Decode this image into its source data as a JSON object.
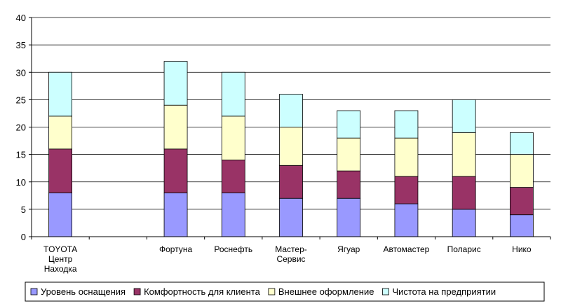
{
  "chart_data": {
    "type": "bar",
    "stacked": true,
    "categories": [
      "TOYOTA\nЦентр\nНаходка",
      "",
      "Фортуна",
      "Роснефть",
      "Мастер-\nСервис",
      "Ягуар",
      "Автомастер",
      "Поларис",
      "Нико"
    ],
    "series": [
      {
        "name": "Уровень оснащения",
        "color": "#9999ff",
        "values": [
          8,
          0,
          8,
          8,
          7,
          7,
          6,
          5,
          4
        ]
      },
      {
        "name": "Комфортность для клиента",
        "color": "#993366",
        "values": [
          8,
          0,
          8,
          6,
          6,
          5,
          5,
          6,
          5
        ]
      },
      {
        "name": "Внешнее оформление",
        "color": "#ffffcc",
        "values": [
          6,
          0,
          8,
          8,
          7,
          6,
          7,
          8,
          6
        ]
      },
      {
        "name": "Чистота на предприятии",
        "color": "#ccffff",
        "values": [
          8,
          0,
          8,
          8,
          6,
          5,
          5,
          6,
          4
        ]
      }
    ],
    "ylim": [
      0,
      40
    ],
    "yticks": [
      0,
      5,
      10,
      15,
      20,
      25,
      30,
      35,
      40
    ],
    "grid": true,
    "legend": "bottom"
  }
}
